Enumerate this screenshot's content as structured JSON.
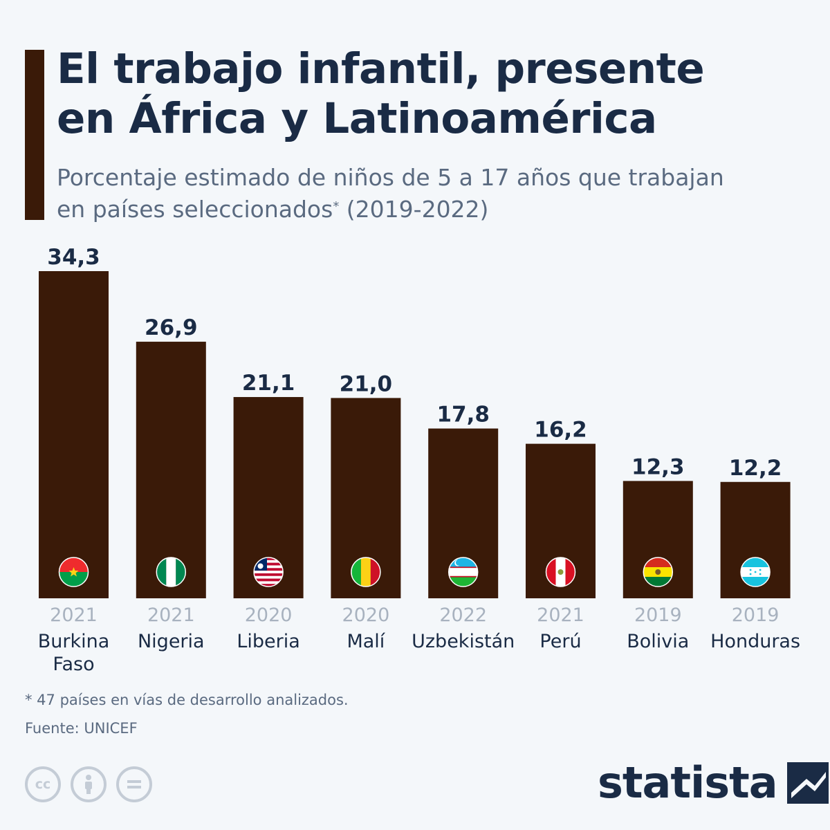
{
  "header": {
    "title_line1": "El trabajo infantil, presente",
    "title_line2": "en África y Latinoamérica",
    "subtitle_line1": "Porcentaje estimado de niños de 5 a 17 años que trabajan",
    "subtitle_line2a": "en países seleccionados",
    "subtitle_star": "*",
    "subtitle_line2b": " (2019-2022)"
  },
  "chart_data": {
    "type": "bar",
    "categories": [
      "Burkina Faso",
      "Nigeria",
      "Liberia",
      "Malí",
      "Uzbekistán",
      "Perú",
      "Bolivia",
      "Honduras"
    ],
    "category_lines": [
      [
        "Burkina",
        "Faso"
      ],
      [
        "Nigeria"
      ],
      [
        "Liberia"
      ],
      [
        "Malí"
      ],
      [
        "Uzbekistán"
      ],
      [
        "Perú"
      ],
      [
        "Bolivia"
      ],
      [
        "Honduras"
      ]
    ],
    "years": [
      "2021",
      "2021",
      "2020",
      "2020",
      "2022",
      "2021",
      "2019",
      "2019"
    ],
    "values": [
      34.3,
      26.9,
      21.1,
      21.0,
      17.8,
      16.2,
      12.3,
      12.2
    ],
    "value_labels": [
      "34,3",
      "26,9",
      "21,1",
      "21,0",
      "17,8",
      "16,2",
      "12,3",
      "12,2"
    ],
    "flags": [
      "burkina-faso-flag-icon",
      "nigeria-flag-icon",
      "liberia-flag-icon",
      "mali-flag-icon",
      "uzbekistan-flag-icon",
      "peru-flag-icon",
      "bolivia-flag-icon",
      "honduras-flag-icon"
    ],
    "ylim": [
      0,
      34.3
    ],
    "grid": false,
    "bar_color": "#3a1a08"
  },
  "footer": {
    "footnote": "* 47 países en vías de desarrollo analizados.",
    "source": "Fuente: UNICEF",
    "license_icons": [
      "cc-icon",
      "attribution-icon",
      "no-derivatives-icon"
    ],
    "cc_label": "cc",
    "brand": "statista"
  },
  "colors": {
    "accent": "#3a1a08",
    "title": "#1a2b45",
    "subtitle": "#5a6a80",
    "background": "#f4f7fa"
  }
}
